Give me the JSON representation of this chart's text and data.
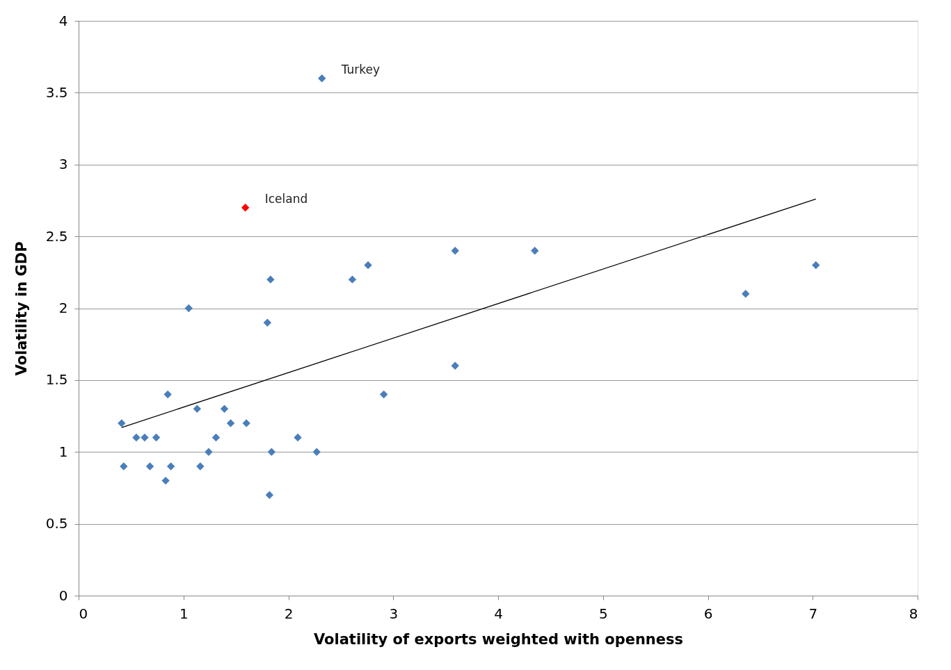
{
  "chart_data": {
    "type": "scatter",
    "xlabel": "Volatility of exports weighted with openness",
    "ylabel": "Volatility in GDP",
    "xlim": [
      0,
      8
    ],
    "xticks": [
      0,
      1,
      2,
      3,
      4,
      5,
      6,
      7,
      8
    ],
    "ylim": [
      0,
      4
    ],
    "yticks": [
      0,
      0.5,
      1,
      1.5,
      2,
      2.5,
      3,
      3.5,
      4
    ],
    "grid": "y",
    "series": [
      {
        "marker": "diamond",
        "color": "#4a7ebb",
        "x": [
          0.41,
          0.43,
          0.55,
          0.63,
          0.68,
          0.74,
          0.83,
          0.85,
          0.88,
          1.05,
          1.13,
          1.16,
          1.24,
          1.31,
          1.39,
          1.45,
          1.6,
          1.8,
          1.82,
          1.83,
          1.84,
          2.09,
          2.27,
          2.32,
          2.61,
          2.76,
          2.91,
          3.59,
          3.59,
          4.35,
          6.36,
          7.03
        ],
        "values": [
          1.2,
          0.9,
          1.1,
          1.1,
          0.9,
          1.1,
          0.8,
          1.4,
          0.9,
          2.0,
          1.3,
          0.9,
          1.0,
          1.1,
          1.3,
          1.2,
          1.2,
          1.9,
          0.7,
          2.2,
          1.0,
          1.1,
          1.0,
          3.6,
          2.2,
          2.3,
          1.4,
          2.4,
          1.6,
          2.4,
          2.1,
          2.3
        ]
      },
      {
        "marker": "diamond",
        "color": "#ff0000",
        "x": [
          1.59
        ],
        "values": [
          2.7
        ]
      },
      {
        "type": "line",
        "marker": "none",
        "color": "#000000",
        "x": [
          0.41,
          7.03
        ],
        "values": [
          1.17,
          2.76
        ]
      }
    ],
    "annotations": [
      {
        "text": "Turkey",
        "x": 2.32,
        "y": 3.6
      },
      {
        "text": "Iceland",
        "x": 1.59,
        "y": 2.7
      }
    ]
  }
}
